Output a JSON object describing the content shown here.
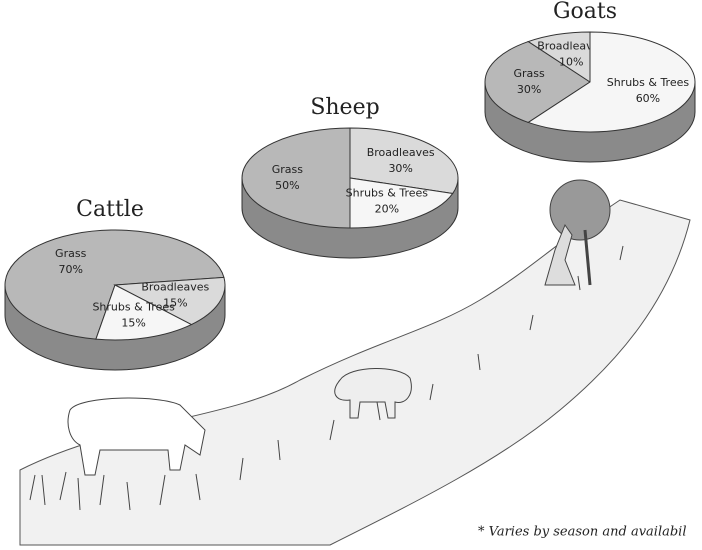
{
  "chart_data": [
    {
      "type": "pie",
      "title": "Cattle",
      "categories": [
        "Grass",
        "Broadleaves",
        "Shrubs & Trees"
      ],
      "values": [
        70,
        15,
        15
      ],
      "value_labels": [
        "70%",
        "15%",
        "15%"
      ],
      "colors": [
        "#b8b8b8",
        "#dadada",
        "#f6f6f6"
      ]
    },
    {
      "type": "pie",
      "title": "Sheep",
      "categories": [
        "Grass",
        "Broadleaves",
        "Shrubs & Trees"
      ],
      "values": [
        50,
        30,
        20
      ],
      "value_labels": [
        "50%",
        "30%",
        "20%"
      ],
      "colors": [
        "#b8b8b8",
        "#dadada",
        "#f6f6f6"
      ]
    },
    {
      "type": "pie",
      "title": "Goats",
      "categories": [
        "Grass",
        "Broadleaves",
        "Shrubs & Trees"
      ],
      "values": [
        30,
        10,
        60
      ],
      "value_labels": [
        "30%",
        "10%",
        "60%"
      ],
      "colors": [
        "#b8b8b8",
        "#dadada",
        "#f6f6f6"
      ]
    }
  ],
  "note": "* Varies by season and availabil"
}
